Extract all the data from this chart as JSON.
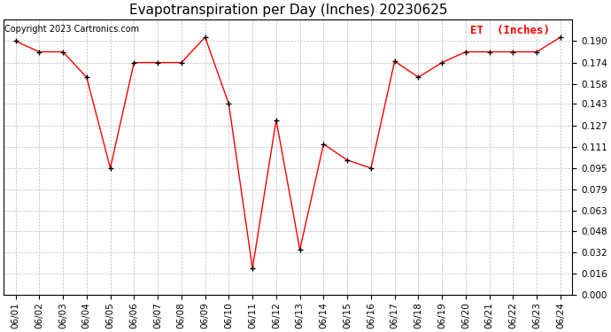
{
  "title": "Evapotranspiration per Day (Inches) 20230625",
  "copyright_text": "Copyright 2023 Cartronics.com",
  "legend_label": "ET  (Inches)",
  "dates": [
    "06/01",
    "06/02",
    "06/03",
    "06/04",
    "06/05",
    "06/06",
    "06/07",
    "06/08",
    "06/09",
    "06/10",
    "06/11",
    "06/12",
    "06/13",
    "06/14",
    "06/15",
    "06/16",
    "06/17",
    "06/18",
    "06/19",
    "06/20",
    "06/21",
    "06/22",
    "06/23",
    "06/24"
  ],
  "values": [
    0.19,
    0.182,
    0.182,
    0.163,
    0.095,
    0.174,
    0.174,
    0.174,
    0.193,
    0.143,
    0.02,
    0.131,
    0.034,
    0.113,
    0.101,
    0.095,
    0.175,
    0.163,
    0.174,
    0.182,
    0.182,
    0.182,
    0.182,
    0.193
  ],
  "ylim": [
    0.0,
    0.2064
  ],
  "yticks": [
    0.0,
    0.016,
    0.032,
    0.048,
    0.063,
    0.079,
    0.095,
    0.111,
    0.127,
    0.143,
    0.158,
    0.174,
    0.19
  ],
  "line_color": "red",
  "marker_color": "black",
  "bg_color": "white",
  "grid_color": "#bbbbbb",
  "title_fontsize": 11,
  "label_fontsize": 7.5,
  "copyright_fontsize": 7,
  "legend_fontsize": 9
}
